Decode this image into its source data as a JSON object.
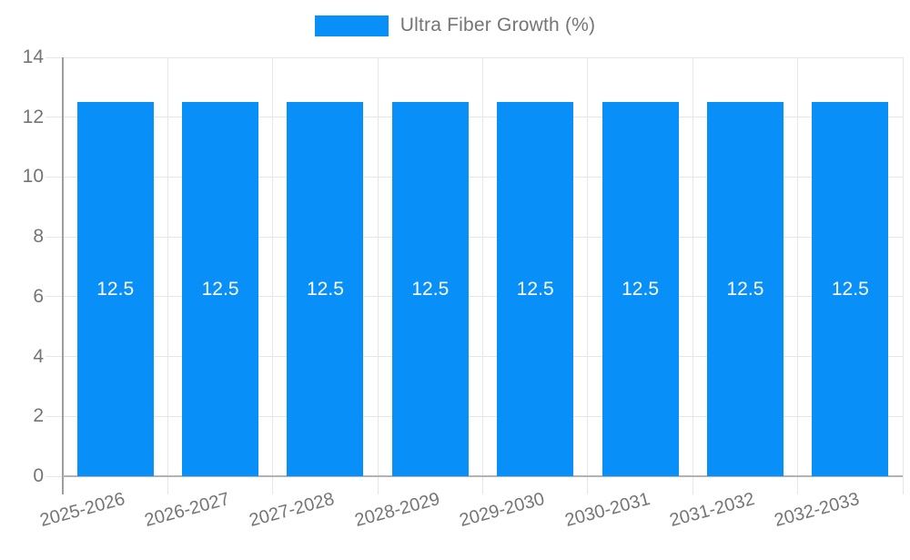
{
  "legend": {
    "label": "Ultra Fiber Growth (%)"
  },
  "colors": {
    "bar": "#0890F8",
    "axis_text": "#757575",
    "gridline": "#e6e6e6",
    "axis_line": "#9e9e9e",
    "baseline": "#b3b3b3",
    "bar_label": "#ffffff"
  },
  "chart_data": {
    "type": "bar",
    "title": "",
    "xlabel": "",
    "ylabel": "",
    "categories": [
      "2025-2026",
      "2026-2027",
      "2027-2028",
      "2028-2029",
      "2029-2030",
      "2030-2031",
      "2031-2032",
      "2032-2033"
    ],
    "series": [
      {
        "name": "Ultra Fiber Growth (%)",
        "values": [
          12.5,
          12.5,
          12.5,
          12.5,
          12.5,
          12.5,
          12.5,
          12.5
        ]
      }
    ],
    "value_labels": [
      "12.5",
      "12.5",
      "12.5",
      "12.5",
      "12.5",
      "12.5",
      "12.5",
      "12.5"
    ],
    "ylim": [
      0,
      14
    ],
    "yticks": [
      0,
      2,
      4,
      6,
      8,
      10,
      12,
      14
    ],
    "ytick_labels": [
      "0",
      "2",
      "4",
      "6",
      "8",
      "10",
      "12",
      "14"
    ],
    "grid": true,
    "legend_position": "top",
    "x_label_rotation_deg": -15
  }
}
